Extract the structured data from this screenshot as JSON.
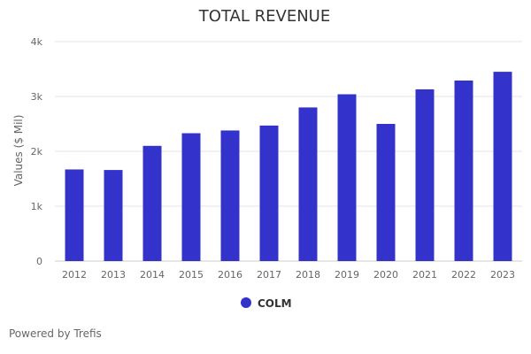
{
  "chart_data": {
    "type": "bar",
    "title": "TOTAL REVENUE",
    "ylabel": "Values ($ Mil)",
    "xlabel": "",
    "categories": [
      "2012",
      "2013",
      "2014",
      "2015",
      "2016",
      "2017",
      "2018",
      "2019",
      "2020",
      "2021",
      "2022",
      "2023"
    ],
    "series": [
      {
        "name": "COLM",
        "color": "#3333cc",
        "values": [
          1670,
          1660,
          2100,
          2330,
          2380,
          2470,
          2800,
          3040,
          2500,
          3130,
          3290,
          3450
        ]
      }
    ],
    "ylim": [
      0,
      4000
    ],
    "yticks": [
      0,
      1000,
      2000,
      3000,
      4000
    ],
    "ytick_labels": [
      "0",
      "1k",
      "2k",
      "3k",
      "4k"
    ],
    "grid": true,
    "legend_position": "bottom-center"
  },
  "footer": {
    "credit": "Powered by Trefis"
  }
}
